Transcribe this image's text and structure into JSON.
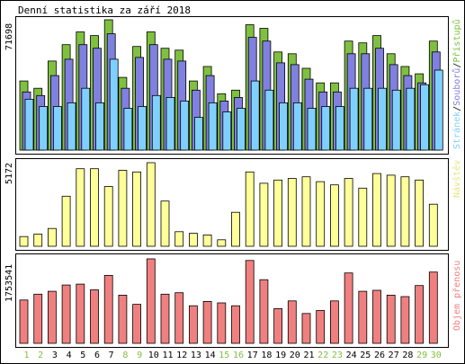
{
  "title": "Denní statistika za září 2018",
  "colors": {
    "background": "#ffffff",
    "panel_border": "#000000",
    "hits": "#80c040",
    "files": "#8080e0",
    "pages": "#80d0ff",
    "visits": "#ffff99",
    "kbytes": "#f08080",
    "weekend_label": "#80c040",
    "weekday_label": "#000000"
  },
  "chart_data": [
    {
      "type": "bar",
      "panel": "hits-files-pages",
      "categories": [
        "1",
        "2",
        "3",
        "4",
        "5",
        "6",
        "7",
        "8",
        "9",
        "10",
        "11",
        "12",
        "13",
        "14",
        "15",
        "16",
        "17",
        "18",
        "19",
        "20",
        "21",
        "22",
        "23",
        "24",
        "25",
        "26",
        "27",
        "28",
        "29",
        "30"
      ],
      "ymax_label": "71698",
      "ylim": [
        0,
        71698
      ],
      "legend": {
        "placement": "right",
        "parts": [
          {
            "text": "Stránek",
            "series": "pages"
          },
          {
            "text": "/",
            "series": null
          },
          {
            "text": "Souborů",
            "series": "files"
          },
          {
            "text": "/",
            "series": null
          },
          {
            "text": "Přístupů",
            "series": "hits"
          }
        ]
      },
      "series": [
        {
          "key": "hits",
          "values": [
            38000,
            34000,
            49000,
            58000,
            65000,
            63000,
            71698,
            40000,
            57000,
            65000,
            56000,
            55000,
            38000,
            46000,
            31000,
            33000,
            69000,
            67000,
            54000,
            53000,
            45000,
            37000,
            37000,
            60000,
            59000,
            63000,
            53000,
            46000,
            42000,
            60000
          ]
        },
        {
          "key": "files",
          "values": [
            32000,
            30000,
            41000,
            50000,
            58000,
            56000,
            64000,
            34000,
            51000,
            58000,
            50000,
            49000,
            33000,
            41000,
            27000,
            29000,
            62000,
            60000,
            48000,
            47000,
            39000,
            32000,
            32000,
            53000,
            53000,
            56000,
            47000,
            41000,
            37000,
            54000
          ]
        },
        {
          "key": "pages",
          "values": [
            28000,
            24000,
            24000,
            26000,
            34000,
            26000,
            50000,
            23000,
            24000,
            30000,
            29000,
            27000,
            18000,
            26000,
            21000,
            23000,
            38000,
            33000,
            26000,
            26000,
            23000,
            24000,
            24000,
            34000,
            34000,
            34000,
            33000,
            34000,
            36000,
            44000
          ]
        }
      ]
    },
    {
      "type": "bar",
      "panel": "visits",
      "categories": [
        "1",
        "2",
        "3",
        "4",
        "5",
        "6",
        "7",
        "8",
        "9",
        "10",
        "11",
        "12",
        "13",
        "14",
        "15",
        "16",
        "17",
        "18",
        "19",
        "20",
        "21",
        "22",
        "23",
        "24",
        "25",
        "26",
        "27",
        "28",
        "29",
        "30"
      ],
      "ymax_label": "5172",
      "ylim": [
        0,
        5172
      ],
      "legend": {
        "placement": "right",
        "parts": [
          {
            "text": "Návštěv",
            "series": "visits"
          }
        ]
      },
      "series": [
        {
          "key": "visits",
          "values": [
            600,
            750,
            1100,
            3100,
            4800,
            4800,
            3700,
            4700,
            4600,
            5172,
            2800,
            900,
            800,
            700,
            400,
            2100,
            4600,
            3900,
            4100,
            4200,
            4300,
            4000,
            3800,
            4200,
            3600,
            4500,
            4400,
            4300,
            4100,
            2600
          ]
        }
      ]
    },
    {
      "type": "bar",
      "panel": "kbytes",
      "categories": [
        "1",
        "2",
        "3",
        "4",
        "5",
        "6",
        "7",
        "8",
        "9",
        "10",
        "11",
        "12",
        "13",
        "14",
        "15",
        "16",
        "17",
        "18",
        "19",
        "20",
        "21",
        "22",
        "23",
        "24",
        "25",
        "26",
        "27",
        "28",
        "29",
        "30"
      ],
      "ymax_label": "1753541",
      "ylim": [
        0,
        1753541
      ],
      "legend": {
        "placement": "right",
        "parts": [
          {
            "text": "Objem přenosu",
            "series": "kbytes"
          }
        ]
      },
      "series": [
        {
          "key": "kbytes",
          "values": [
            900000,
            1020000,
            1080000,
            1210000,
            1230000,
            1110000,
            1410000,
            1000000,
            810000,
            1753541,
            1020000,
            1050000,
            780000,
            870000,
            840000,
            780000,
            1720000,
            1320000,
            720000,
            880000,
            620000,
            680000,
            880000,
            1460000,
            1080000,
            1100000,
            1000000,
            970000,
            1200000,
            1480000
          ]
        }
      ]
    }
  ],
  "weekend_days": [
    "1",
    "2",
    "8",
    "9",
    "15",
    "16",
    "22",
    "23",
    "29",
    "30"
  ]
}
